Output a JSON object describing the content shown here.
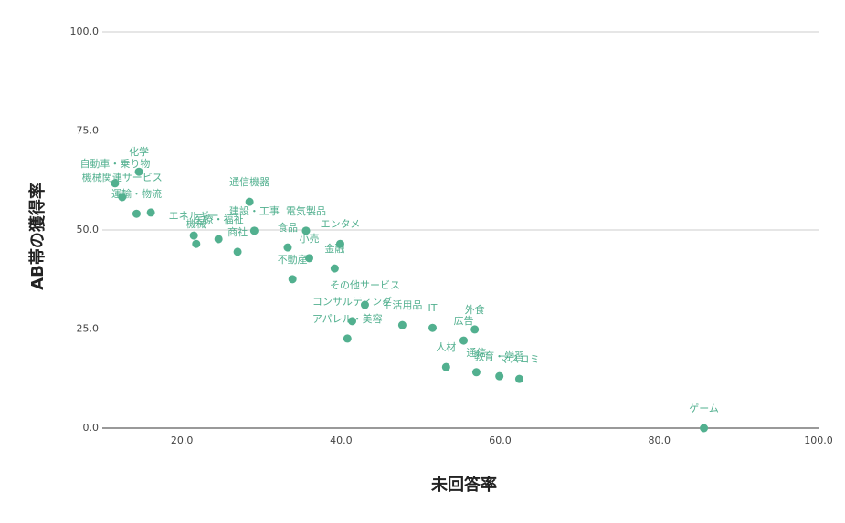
{
  "chart_data": {
    "type": "scatter",
    "xlabel": "未回答率",
    "ylabel": "AB帯の獲得率",
    "xlim": [
      10,
      100
    ],
    "ylim": [
      0,
      100
    ],
    "xticks": [
      {
        "value": 20,
        "label": "20.0"
      },
      {
        "value": 40,
        "label": "40.0"
      },
      {
        "value": 60,
        "label": "60.0"
      },
      {
        "value": 80,
        "label": "80.0"
      },
      {
        "value": 100,
        "label": "100.0"
      }
    ],
    "yticks": [
      {
        "value": 0,
        "label": "0.0"
      },
      {
        "value": 25,
        "label": "25.0"
      },
      {
        "value": 50,
        "label": "50.0"
      },
      {
        "value": 75,
        "label": "75.0"
      },
      {
        "value": 100,
        "label": "100.0"
      }
    ],
    "grid": true,
    "color": "#52b08f",
    "labels": [
      "ゲーム",
      "マスコミ",
      "教育・学習",
      "通信",
      "人材",
      "広告",
      "外食",
      "IT",
      "生活用品",
      "コンサルティング",
      "アパレル・美容",
      "その他サービス",
      "金融",
      "エンタメ",
      "電気製品",
      "小売",
      "食品",
      "不動産",
      "建設・工事",
      "商社",
      "通信機器",
      "医療・福祉",
      "機械",
      "エネルギー",
      "運輸・物流",
      null,
      "機械関連サービス",
      "自動車・乗り物",
      "化学"
    ],
    "x": [
      85.6,
      62.4,
      59.9,
      57.0,
      53.2,
      55.4,
      56.8,
      51.5,
      47.7,
      41.4,
      40.8,
      43.0,
      39.2,
      39.9,
      35.6,
      36.0,
      33.3,
      33.9,
      29.1,
      27.0,
      28.5,
      24.6,
      21.8,
      21.5,
      14.3,
      16.1,
      12.5,
      11.6,
      14.6
    ],
    "values": [
      0,
      12.4,
      13.1,
      14.1,
      15.4,
      22.1,
      24.9,
      25.3,
      26.0,
      27.0,
      22.6,
      31.1,
      40.3,
      46.5,
      49.8,
      42.9,
      45.6,
      37.6,
      49.8,
      44.5,
      57.1,
      47.7,
      46.5,
      48.6,
      54.1,
      54.4,
      58.3,
      61.8,
      64.7
    ]
  }
}
